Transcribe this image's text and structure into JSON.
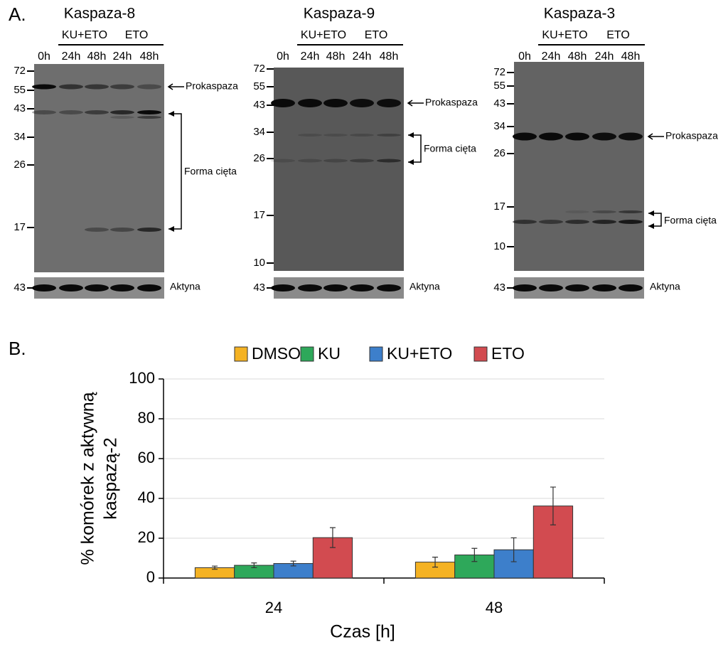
{
  "panel_a": {
    "label": "A.",
    "blots": [
      {
        "title": "Kaspaza-8",
        "groups": [
          "KU+ETO",
          "ETO"
        ],
        "lanes": [
          "0h",
          "24h",
          "48h",
          "24h",
          "48h"
        ],
        "markers": [
          72,
          55,
          43,
          34,
          26,
          17
        ],
        "annotations": [
          "Prokaspaza",
          "Forma cięta"
        ],
        "loading_control": {
          "marker": 43,
          "label": "Aktyna"
        }
      },
      {
        "title": "Kaspaza-9",
        "groups": [
          "KU+ETO",
          "ETO"
        ],
        "lanes": [
          "0h",
          "24h",
          "48h",
          "24h",
          "48h"
        ],
        "markers": [
          72,
          55,
          43,
          34,
          26,
          17,
          10
        ],
        "annotations": [
          "Prokaspaza",
          "Forma cięta"
        ],
        "loading_control": {
          "marker": 43,
          "label": "Aktyna"
        }
      },
      {
        "title": "Kaspaza-3",
        "groups": [
          "KU+ETO",
          "ETO"
        ],
        "lanes": [
          "0h",
          "24h",
          "48h",
          "24h",
          "48h"
        ],
        "markers": [
          72,
          55,
          43,
          34,
          26,
          17,
          10
        ],
        "annotations": [
          "Prokaspaza",
          "Forma cięta"
        ],
        "loading_control": {
          "marker": 43,
          "label": "Aktyna"
        }
      }
    ]
  },
  "panel_b": {
    "label": "B."
  },
  "chart_data": {
    "type": "bar",
    "categories": [
      "24",
      "48"
    ],
    "series": [
      {
        "name": "DMSO",
        "color": "#f4b223",
        "values": [
          5.2,
          8
        ],
        "errors": [
          0.8,
          2.5
        ]
      },
      {
        "name": "KU",
        "color": "#2ea85a",
        "values": [
          6.4,
          11.6
        ],
        "errors": [
          1.2,
          3.3
        ]
      },
      {
        "name": "KU+ETO",
        "color": "#3d7fcb",
        "values": [
          7.3,
          14.2
        ],
        "errors": [
          1.2,
          6
        ]
      },
      {
        "name": "ETO",
        "color": "#d24b50",
        "values": [
          20.3,
          36.2
        ],
        "errors": [
          5,
          9.5
        ]
      }
    ],
    "ylim": [
      0,
      100
    ],
    "yticks": [
      0,
      20,
      40,
      60,
      80,
      100
    ],
    "grid": true,
    "ylabel": [
      "% komórek z aktywną",
      "kaspazą-2"
    ],
    "xlabel": "Czas [h]",
    "legend": "top"
  }
}
